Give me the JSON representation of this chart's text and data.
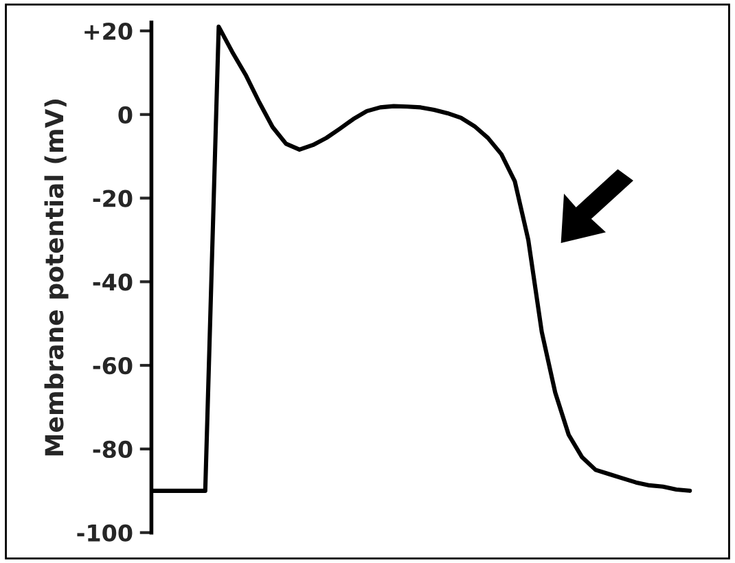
{
  "chart_data": {
    "type": "line",
    "ylabel": "Membrane potential (mV)",
    "categories": [
      null,
      null,
      null,
      null,
      null,
      null,
      null,
      null,
      null,
      null,
      null,
      null,
      null,
      null,
      null,
      null,
      null,
      null,
      null,
      null,
      null,
      null,
      null,
      null,
      null,
      null,
      null,
      null,
      null,
      null,
      null,
      null,
      null,
      null,
      null,
      null,
      null,
      null,
      null,
      null,
      null
    ],
    "series": [
      {
        "color": "#000000",
        "values": [
          -90,
          -90,
          -90,
          -90,
          -90,
          21,
          15,
          9.5,
          3,
          -3,
          -7,
          -8.4,
          -7.3,
          -5.6,
          -3.4,
          -1.1,
          0.8,
          1.7,
          2,
          1.9,
          1.7,
          1.1,
          0.3,
          -0.8,
          -2.8,
          -5.6,
          -9.5,
          -16,
          -30,
          -52,
          -66.5,
          -76.6,
          -82,
          -85,
          -86,
          -87,
          -88,
          -88.7,
          -89,
          -89.7,
          -90
        ]
      }
    ],
    "ylim": [
      -100,
      22
    ],
    "yticks": [
      {
        "value": 20,
        "label": "+20"
      },
      0,
      -20,
      -40,
      -60,
      -80,
      -100
    ],
    "tick_labels": "y",
    "grid": false,
    "legend": false,
    "marker": "none",
    "line_style": "solid"
  }
}
